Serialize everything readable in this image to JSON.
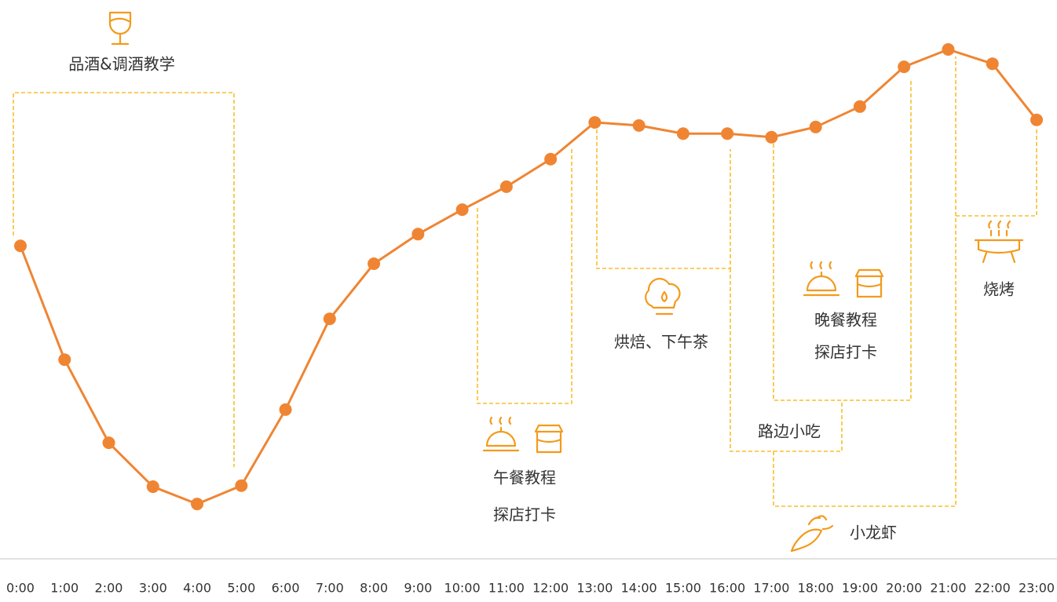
{
  "chart_data": {
    "type": "line",
    "categories": [
      "0:00",
      "1:00",
      "2:00",
      "3:00",
      "4:00",
      "5:00",
      "6:00",
      "7:00",
      "8:00",
      "9:00",
      "10:00",
      "11:00",
      "12:00",
      "13:00",
      "14:00",
      "15:00",
      "16:00",
      "17:00",
      "18:00",
      "19:00",
      "20:00",
      "21:00",
      "22:00",
      "23:00"
    ],
    "values": [
      59.5,
      37.2,
      20.9,
      12.3,
      8.9,
      12.5,
      27.4,
      45.2,
      56,
      61.8,
      66.6,
      71.1,
      76.5,
      83.7,
      83.1,
      81.5,
      81.5,
      80.8,
      82.8,
      86.8,
      94.6,
      98,
      95.2,
      84.2
    ],
    "color": "#ef8533",
    "ylim": [
      0,
      100
    ],
    "annotations": [
      "品酒&调酒教学",
      "午餐教程",
      "探店打卡",
      "烘焙、下午茶",
      "晚餐教程",
      "探店打卡",
      "路边小吃",
      "小龙虾",
      "烧烤"
    ]
  }
}
